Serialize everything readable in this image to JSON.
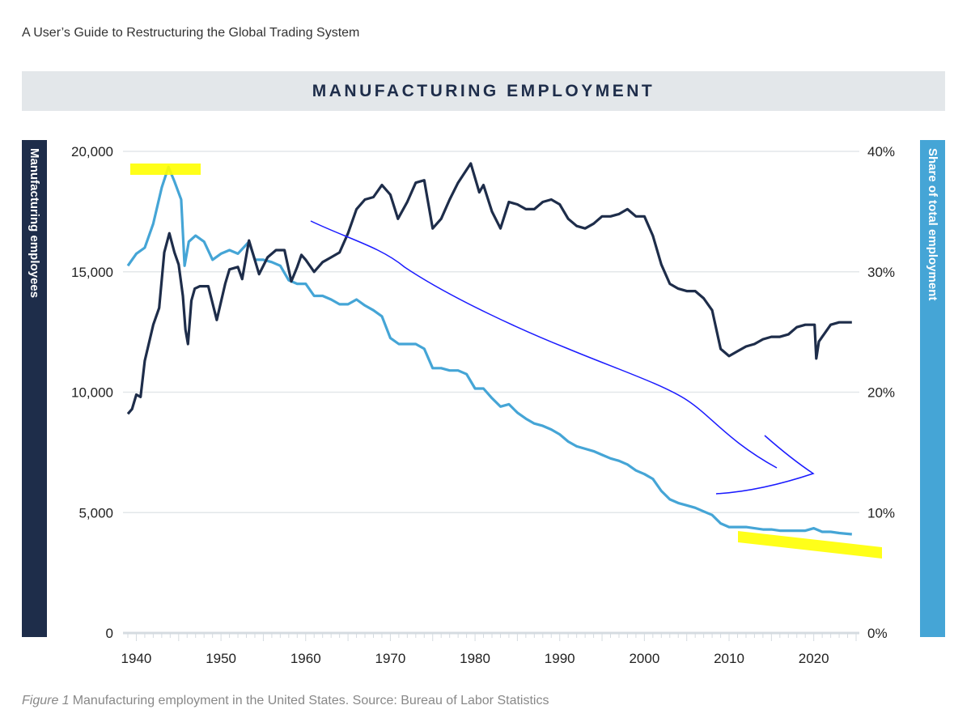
{
  "header": {
    "doc_title": "A User’s Guide to Restructuring the Global Trading System",
    "chart_title": "MANUFACTURING EMPLOYMENT"
  },
  "caption": {
    "figure": "Figure 1",
    "text": "Manufacturing employment in the United States. Source: Bureau of Labor Statistics"
  },
  "colors": {
    "employees": "#1e2d4a",
    "share": "#45a5d6",
    "annotation": "#1a1aff",
    "highlight": "#ffff00"
  },
  "chart_data": {
    "type": "line",
    "title": "MANUFACTURING EMPLOYMENT",
    "xlabel": "",
    "ylabel": "Manufacturing employees",
    "y2label": "Share of total employment",
    "xlim": [
      1939,
      2025
    ],
    "ylim": [
      0,
      20000
    ],
    "y2lim": [
      0,
      40
    ],
    "grid": true,
    "x_ticks": [
      "1940",
      "1950",
      "1960",
      "1970",
      "1980",
      "1990",
      "2000",
      "2010",
      "2020"
    ],
    "y_ticks": [
      "0",
      "5,000",
      "10,000",
      "15,000",
      "20,000"
    ],
    "y2_ticks": [
      "0%",
      "10%",
      "20%",
      "30%",
      "40%"
    ],
    "series": [
      {
        "name": "Manufacturing employees (thousands)",
        "axis": "left",
        "x": [
          1939,
          1939.5,
          1940,
          1940.5,
          1941,
          1942,
          1942.7,
          1943.3,
          1943.9,
          1944.5,
          1945,
          1945.5,
          1945.8,
          1946.1,
          1946.5,
          1946.9,
          1947.5,
          1948.5,
          1949.5,
          1950.5,
          1951,
          1952,
          1952.5,
          1953.3,
          1954.5,
          1955.5,
          1956.5,
          1957.5,
          1958.3,
          1959,
          1959.5,
          1960,
          1961,
          1962,
          1963,
          1964,
          1965,
          1966,
          1967,
          1968,
          1969,
          1970,
          1970.9,
          1972,
          1973,
          1974,
          1975,
          1976,
          1977,
          1978,
          1979.5,
          1980.5,
          1981,
          1982,
          1983,
          1984,
          1985,
          1986,
          1987,
          1988,
          1989,
          1990,
          1991,
          1992,
          1993,
          1994,
          1995,
          1996,
          1997,
          1998,
          1999,
          2000,
          2001,
          2002,
          2003,
          2004,
          2005,
          2006,
          2007,
          2008,
          2009,
          2010,
          2011,
          2012,
          2013,
          2014,
          2015,
          2016,
          2017,
          2018,
          2019,
          2020.1,
          2020.3,
          2020.6,
          2021,
          2022,
          2023,
          2024.5
        ],
        "values": [
          9100,
          9300,
          9900,
          9800,
          11300,
          12800,
          13500,
          15800,
          16600,
          15800,
          15300,
          14000,
          12600,
          12000,
          13800,
          14300,
          14400,
          14400,
          13000,
          14500,
          15100,
          15200,
          14700,
          16300,
          14900,
          15600,
          15900,
          15900,
          14600,
          15200,
          15700,
          15500,
          15000,
          15400,
          15600,
          15800,
          16600,
          17600,
          18000,
          18100,
          18600,
          18200,
          17200,
          17900,
          18700,
          18800,
          16800,
          17200,
          18000,
          18700,
          19500,
          18300,
          18600,
          17500,
          16800,
          17900,
          17800,
          17600,
          17600,
          17900,
          18000,
          17800,
          17200,
          16900,
          16800,
          17000,
          17300,
          17300,
          17400,
          17600,
          17300,
          17300,
          16500,
          15300,
          14500,
          14300,
          14200,
          14200,
          13900,
          13400,
          11800,
          11500,
          11700,
          11900,
          12000,
          12200,
          12300,
          12300,
          12400,
          12700,
          12800,
          12800,
          11400,
          12100,
          12300,
          12800,
          12900,
          12900
        ]
      },
      {
        "name": "Share of total employment (%)",
        "axis": "right",
        "x": [
          1939,
          1939.5,
          1940,
          1941,
          1942,
          1943,
          1943.8,
          1944.5,
          1945.3,
          1945.7,
          1946.2,
          1947,
          1948,
          1949,
          1950,
          1951,
          1952,
          1953.3,
          1954,
          1955,
          1956,
          1957,
          1958,
          1959,
          1960,
          1961,
          1962,
          1963,
          1964,
          1965,
          1966,
          1967,
          1968,
          1969,
          1970,
          1971,
          1972,
          1973,
          1974,
          1975,
          1976,
          1977,
          1978,
          1979,
          1980,
          1981,
          1982,
          1983,
          1984,
          1985,
          1986,
          1987,
          1988,
          1989,
          1990,
          1991,
          1992,
          1993,
          1994,
          1995,
          1996,
          1997,
          1998,
          1999,
          2000,
          2001,
          2002,
          2003,
          2004,
          2005,
          2006,
          2007,
          2008,
          2009,
          2010,
          2011,
          2012,
          2013,
          2014,
          2015,
          2016,
          2017,
          2018,
          2019,
          2020,
          2021,
          2022,
          2023,
          2024.5
        ],
        "values": [
          30.5,
          31,
          31.5,
          32,
          34,
          37,
          38.7,
          37.5,
          36,
          30.5,
          32.5,
          33,
          32.5,
          31,
          31.5,
          31.8,
          31.5,
          32.5,
          31,
          31,
          30.8,
          30.5,
          29.3,
          29,
          29,
          28,
          28,
          27.7,
          27.3,
          27.3,
          27.7,
          27.2,
          26.8,
          26.3,
          24.5,
          24,
          24,
          24,
          23.6,
          22,
          22,
          21.8,
          21.8,
          21.5,
          20.3,
          20.3,
          19.5,
          18.8,
          19,
          18.3,
          17.8,
          17.4,
          17.2,
          16.9,
          16.5,
          15.9,
          15.5,
          15.3,
          15.1,
          14.8,
          14.5,
          14.3,
          14,
          13.5,
          13.2,
          12.8,
          11.8,
          11.1,
          10.8,
          10.6,
          10.4,
          10.1,
          9.8,
          9.1,
          8.8,
          8.8,
          8.8,
          8.7,
          8.6,
          8.6,
          8.5,
          8.5,
          8.5,
          8.5,
          8.7,
          8.4,
          8.4,
          8.3,
          8.2
        ]
      }
    ]
  }
}
